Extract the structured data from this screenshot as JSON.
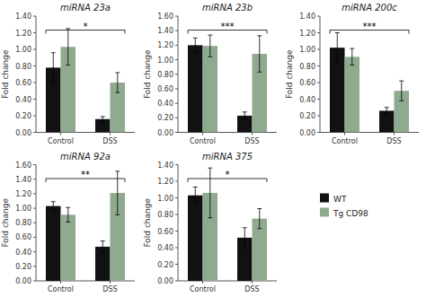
{
  "chart_data": [
    {
      "type": "bar",
      "title": "miRNA 23a",
      "y_label": "Fold change",
      "categories": [
        "Control",
        "DSS"
      ],
      "series": [
        {
          "name": "WT",
          "color": "#111111",
          "values": [
            0.78,
            0.16
          ],
          "errors": [
            0.18,
            0.03
          ]
        },
        {
          "name": "Tg CD98",
          "color": "#8faa8f",
          "values": [
            1.03,
            0.6
          ],
          "errors": [
            0.22,
            0.12
          ]
        }
      ],
      "ylim": [
        0,
        1.4
      ],
      "yticks": [
        {
          "value": 0.0,
          "label": "0.00"
        },
        {
          "value": 0.2,
          "label": "0.20"
        },
        {
          "value": 0.4,
          "label": "0.40"
        },
        {
          "value": 0.6,
          "label": "0.60"
        },
        {
          "value": 0.8,
          "label": "0.80"
        },
        {
          "value": 1.0,
          "label": "1.00"
        },
        {
          "value": 1.2,
          "label": "1.20"
        },
        {
          "value": 1.4,
          "label": "1.40"
        }
      ],
      "annotations": [
        {
          "text": "*",
          "y": 1.232
        }
      ],
      "legend": "lower right"
    },
    {
      "type": "bar",
      "title": "miRNA 23b",
      "y_label": "Fold change",
      "categories": [
        "Control",
        "DSS"
      ],
      "series": [
        {
          "name": "WT",
          "color": "#111111",
          "values": [
            1.2,
            0.23
          ],
          "errors": [
            0.1,
            0.05
          ]
        },
        {
          "name": "Tg CD98",
          "color": "#8faa8f",
          "values": [
            1.19,
            1.08
          ],
          "errors": [
            0.15,
            0.25
          ]
        }
      ],
      "ylim": [
        0,
        1.6
      ],
      "yticks": [
        {
          "value": 0.0,
          "label": "0.00"
        },
        {
          "value": 0.2,
          "label": "0.20"
        },
        {
          "value": 0.4,
          "label": "0.40"
        },
        {
          "value": 0.6,
          "label": "0.60"
        },
        {
          "value": 0.8,
          "label": "0.80"
        },
        {
          "value": 1.0,
          "label": "1.00"
        },
        {
          "value": 1.2,
          "label": "1.20"
        },
        {
          "value": 1.4,
          "label": "1.40"
        },
        {
          "value": 1.6,
          "label": "1.60"
        }
      ],
      "annotations": [
        {
          "text": "***",
          "y": 1.408
        }
      ]
    },
    {
      "type": "bar",
      "title": "miRNA 200c",
      "y_label": "Fold change",
      "categories": [
        "Control",
        "DSS"
      ],
      "series": [
        {
          "name": "WT",
          "color": "#111111",
          "values": [
            1.02,
            0.26
          ],
          "errors": [
            0.18,
            0.04
          ]
        },
        {
          "name": "Tg CD98",
          "color": "#8faa8f",
          "values": [
            0.91,
            0.5
          ],
          "errors": [
            0.1,
            0.12
          ]
        }
      ],
      "ylim": [
        0,
        1.4
      ],
      "yticks": [
        {
          "value": 0.0,
          "label": "0.00"
        },
        {
          "value": 0.2,
          "label": "0.20"
        },
        {
          "value": 0.4,
          "label": "0.40"
        },
        {
          "value": 0.6,
          "label": "0.60"
        },
        {
          "value": 0.8,
          "label": "0.80"
        },
        {
          "value": 1.0,
          "label": "1.00"
        },
        {
          "value": 1.2,
          "label": "1.20"
        },
        {
          "value": 1.4,
          "label": "1.40"
        }
      ],
      "annotations": [
        {
          "text": "***",
          "y": 1.232
        }
      ]
    },
    {
      "type": "bar",
      "title": "miRNA 92a",
      "y_label": "Fold change",
      "categories": [
        "Control",
        "DSS"
      ],
      "series": [
        {
          "name": "WT",
          "color": "#111111",
          "values": [
            1.03,
            0.47
          ],
          "errors": [
            0.06,
            0.08
          ]
        },
        {
          "name": "Tg CD98",
          "color": "#8faa8f",
          "values": [
            0.91,
            1.21
          ],
          "errors": [
            0.1,
            0.3
          ]
        }
      ],
      "ylim": [
        0,
        1.6
      ],
      "yticks": [
        {
          "value": 0.0,
          "label": "0.00"
        },
        {
          "value": 0.2,
          "label": "0.20"
        },
        {
          "value": 0.4,
          "label": "0.40"
        },
        {
          "value": 0.6,
          "label": "0.60"
        },
        {
          "value": 0.8,
          "label": "0.80"
        },
        {
          "value": 1.0,
          "label": "1.00"
        },
        {
          "value": 1.2,
          "label": "1.20"
        },
        {
          "value": 1.4,
          "label": "1.40"
        },
        {
          "value": 1.6,
          "label": "1.60"
        }
      ],
      "annotations": [
        {
          "text": "**",
          "y": 1.408
        }
      ]
    },
    {
      "type": "bar",
      "title": "miRNA 375",
      "y_label": "Fold change",
      "categories": [
        "Control",
        "DSS"
      ],
      "series": [
        {
          "name": "WT",
          "color": "#111111",
          "values": [
            1.03,
            0.52
          ],
          "errors": [
            0.1,
            0.12
          ]
        },
        {
          "name": "Tg CD98",
          "color": "#8faa8f",
          "values": [
            1.06,
            0.75
          ],
          "errors": [
            0.3,
            0.12
          ]
        }
      ],
      "ylim": [
        0,
        1.4
      ],
      "yticks": [
        {
          "value": 0.0,
          "label": "0.00"
        },
        {
          "value": 0.2,
          "label": "0.20"
        },
        {
          "value": 0.4,
          "label": "0.40"
        },
        {
          "value": 0.6,
          "label": "0.60"
        },
        {
          "value": 0.8,
          "label": "0.80"
        },
        {
          "value": 1.0,
          "label": "1.00"
        },
        {
          "value": 1.2,
          "label": "1.20"
        },
        {
          "value": 1.4,
          "label": "1.40"
        }
      ],
      "annotations": [
        {
          "text": "*",
          "y": 1.232
        }
      ]
    }
  ]
}
